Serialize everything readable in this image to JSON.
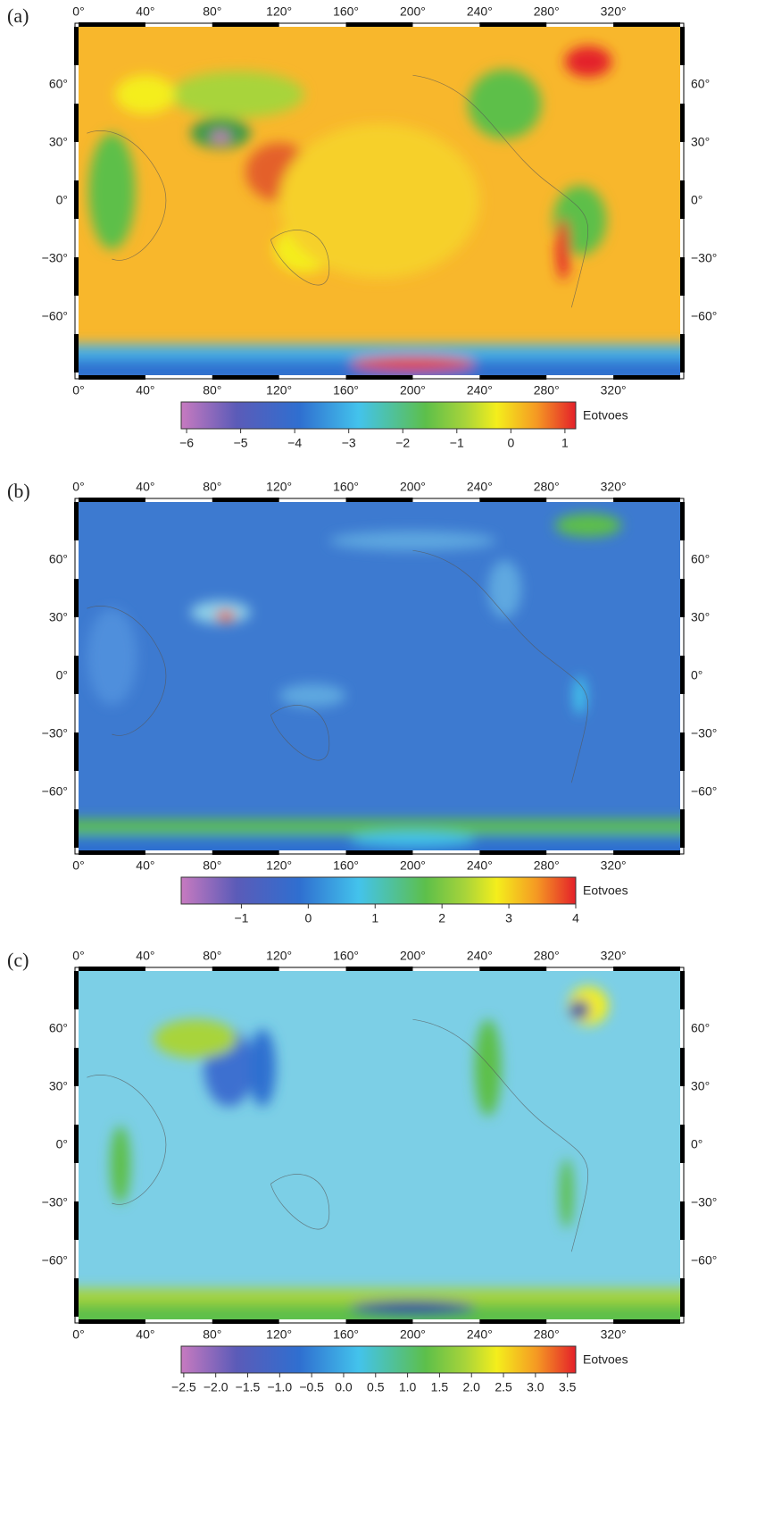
{
  "panels": [
    {
      "label": "(a)",
      "lon_range": [
        0,
        360
      ],
      "lat_range": [
        -90,
        90
      ],
      "lon_ticks": [
        {
          "value": 0,
          "label": "0°"
        },
        {
          "value": 40,
          "label": "40°"
        },
        {
          "value": 80,
          "label": "80°"
        },
        {
          "value": 120,
          "label": "120°"
        },
        {
          "value": 160,
          "label": "160°"
        },
        {
          "value": 200,
          "label": "200°"
        },
        {
          "value": 240,
          "label": "240°"
        },
        {
          "value": 280,
          "label": "280°"
        },
        {
          "value": 320,
          "label": "320°"
        }
      ],
      "lat_ticks": [
        {
          "value": 60,
          "label": "60°"
        },
        {
          "value": 30,
          "label": "30°"
        },
        {
          "value": 0,
          "label": "0°"
        },
        {
          "value": -30,
          "label": "−30°"
        },
        {
          "value": -60,
          "label": "−60°"
        }
      ],
      "colorbar": {
        "unit": "Eotvoes",
        "range": [
          -6.1,
          1.2
        ],
        "ticks": [
          {
            "value": -6,
            "label": "−6"
          },
          {
            "value": -5,
            "label": "−5"
          },
          {
            "value": -4,
            "label": "−4"
          },
          {
            "value": -3,
            "label": "−3"
          },
          {
            "value": -2,
            "label": "−2"
          },
          {
            "value": -1,
            "label": "−1"
          },
          0,
          1
        ]
      }
    },
    {
      "label": "(b)",
      "lon_range": [
        0,
        360
      ],
      "lat_range": [
        -90,
        90
      ],
      "lon_ticks": [
        {
          "value": 0,
          "label": "0°"
        },
        {
          "value": 40,
          "label": "40°"
        },
        {
          "value": 80,
          "label": "80°"
        },
        {
          "value": 120,
          "label": "120°"
        },
        {
          "value": 160,
          "label": "160°"
        },
        {
          "value": 200,
          "label": "200°"
        },
        {
          "value": 240,
          "label": "240°"
        },
        {
          "value": 280,
          "label": "280°"
        },
        {
          "value": 320,
          "label": "320°"
        }
      ],
      "lat_ticks": [
        {
          "value": 60,
          "label": "60°"
        },
        {
          "value": 30,
          "label": "30°"
        },
        {
          "value": 0,
          "label": "0°"
        },
        {
          "value": -30,
          "label": "−30°"
        },
        {
          "value": -60,
          "label": "−60°"
        }
      ],
      "colorbar": {
        "unit": "Eotvoes",
        "range": [
          -1.9,
          4
        ],
        "ticks": [
          {
            "value": -1,
            "label": "−1"
          },
          0,
          1,
          2,
          3,
          4
        ]
      }
    },
    {
      "label": "(c)",
      "lon_range": [
        0,
        360
      ],
      "lat_range": [
        -90,
        90
      ],
      "lon_ticks": [
        {
          "value": 0,
          "label": "0°"
        },
        {
          "value": 40,
          "label": "40°"
        },
        {
          "value": 80,
          "label": "80°"
        },
        {
          "value": 120,
          "label": "120°"
        },
        {
          "value": 160,
          "label": "160°"
        },
        {
          "value": 200,
          "label": "200°"
        },
        {
          "value": 240,
          "label": "240°"
        },
        {
          "value": 280,
          "label": "280°"
        },
        {
          "value": 320,
          "label": "320°"
        }
      ],
      "lat_ticks": [
        {
          "value": 60,
          "label": "60°"
        },
        {
          "value": 30,
          "label": "30°"
        },
        {
          "value": 0,
          "label": "0°"
        },
        {
          "value": -30,
          "label": "−30°"
        },
        {
          "value": -60,
          "label": "−60°"
        }
      ],
      "colorbar": {
        "unit": "Eotvoes",
        "range": [
          -2.54,
          3.63
        ],
        "ticks": [
          {
            "value": -2.5,
            "label": "−2.5"
          },
          {
            "value": -2,
            "label": "−2.0"
          },
          {
            "value": -1.5,
            "label": "−1.5"
          },
          {
            "value": -1,
            "label": "−1.0"
          },
          {
            "value": -0.5,
            "label": "−0.5"
          },
          {
            "value": 0,
            "label": "0.0"
          },
          {
            "value": 0.5,
            "label": "0.5"
          },
          {
            "value": 1,
            "label": "1.0"
          },
          {
            "value": 1.5,
            "label": "1.5"
          },
          {
            "value": 2,
            "label": "2.0"
          },
          {
            "value": 2.5,
            "label": "2.5"
          },
          {
            "value": 3,
            "label": "3.0"
          },
          {
            "value": 3.5,
            "label": "3.5"
          }
        ]
      }
    }
  ]
}
